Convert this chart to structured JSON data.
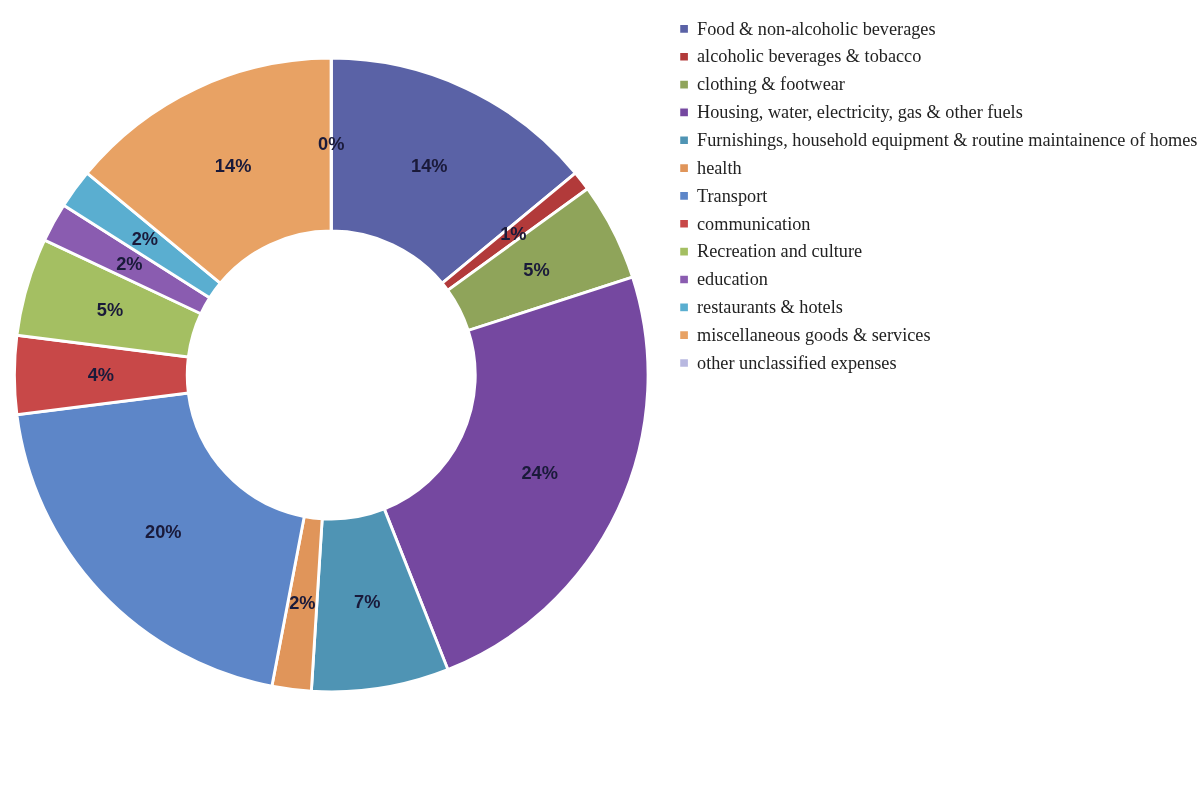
{
  "chart_data": {
    "type": "donut",
    "categories": [
      "Food & non-alcoholic beverages",
      "alcoholic beverages & tobacco",
      "clothing & footwear",
      "Housing, water, electricity, gas & other fuels",
      "Furnishings, household equipment & routine maintainence of homes",
      "health",
      "Transport",
      "communication",
      "Recreation and culture",
      "education",
      "restaurants & hotels",
      "miscellaneous goods & services",
      "other unclassified expenses"
    ],
    "values": [
      14,
      1,
      5,
      24,
      7,
      2,
      20,
      4,
      5,
      2,
      2,
      14,
      0
    ],
    "value_labels": [
      "14%",
      "1%",
      "5%",
      "24%",
      "7%",
      "2%",
      "20%",
      "4%",
      "5%",
      "2%",
      "2%",
      "14%",
      "0%"
    ],
    "colors": [
      "#5a62a6",
      "#b23a3a",
      "#8fa45a",
      "#7548a0",
      "#4f94b4",
      "#e0955a",
      "#5d86c8",
      "#c84848",
      "#a4bf62",
      "#8a5cb0",
      "#5aaed0",
      "#e8a264",
      "#b8b8e0"
    ],
    "legend": "right"
  }
}
